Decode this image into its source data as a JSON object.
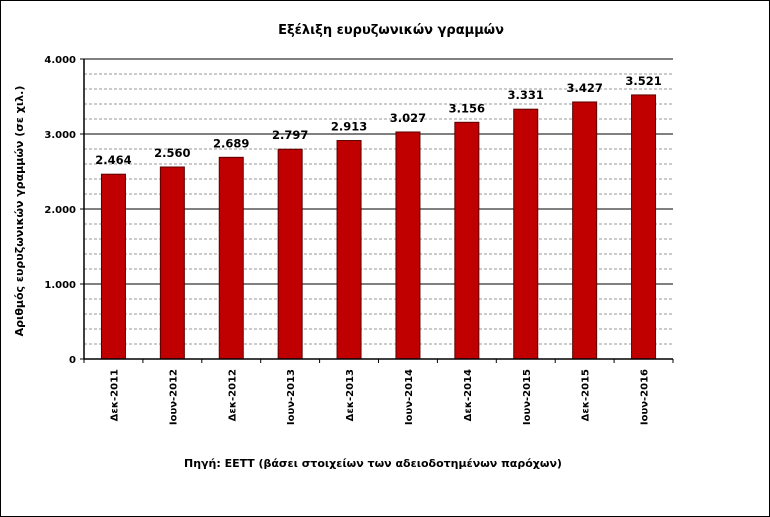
{
  "chart_data": {
    "type": "bar",
    "title": "Εξέλιξη ευρυζωνικών γραμμών",
    "ylabel": "Αριθμός ευρυζωνικών γραμμών (σε χιλ.)",
    "xlabel": "",
    "source": "Πηγή: ΕΕΤΤ (βάσει στοιχείων των αδειοδοτημένων παρόχων)",
    "categories": [
      "Δεκ-2011",
      "Ιουν-2012",
      "Δεκ-2012",
      "Ιουν-2013",
      "Δεκ-2013",
      "Ιουν-2014",
      "Δεκ-2014",
      "Ιουν-2015",
      "Δεκ-2015",
      "Ιουν-2016"
    ],
    "values": [
      2464,
      2560,
      2689,
      2797,
      2913,
      3027,
      3156,
      3331,
      3427,
      3521
    ],
    "data_labels": [
      "2.464",
      "2.560",
      "2.689",
      "2.797",
      "2.913",
      "3.027",
      "3.156",
      "3.331",
      "3.427",
      "3.521"
    ],
    "ylim": [
      0,
      4000
    ],
    "yticks": [
      0,
      1000,
      2000,
      3000,
      4000
    ],
    "ytick_labels": [
      "0",
      "1.000",
      "2.000",
      "3.000",
      "4.000"
    ],
    "grid": true,
    "legend": "none",
    "colors": {
      "bar": "#c00000",
      "bar_edge": "#5a0000",
      "major_grid": "#000000",
      "minor_grid": "#9a9a9a"
    }
  }
}
